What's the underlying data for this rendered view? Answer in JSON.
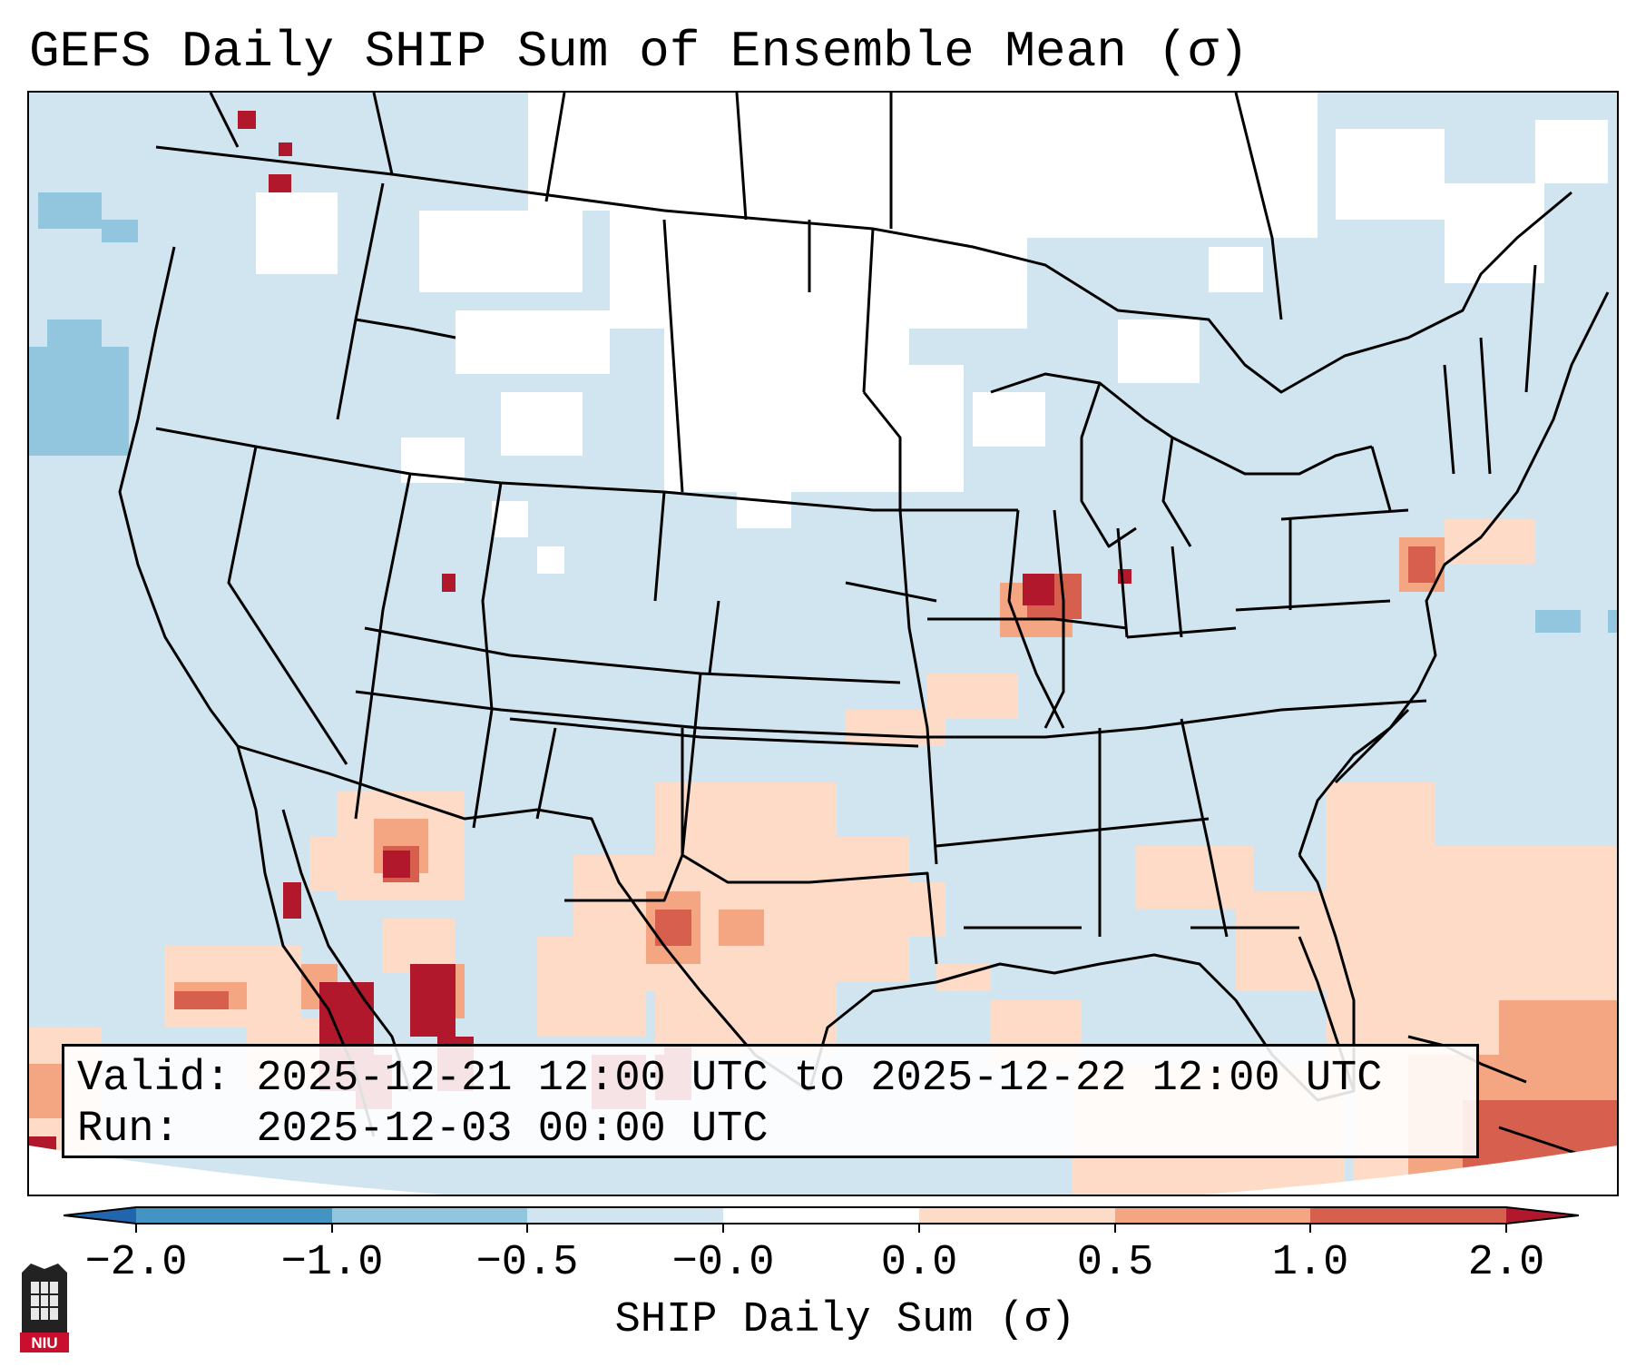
{
  "title": "GEFS Daily SHIP Sum of Ensemble Mean (σ)",
  "info": {
    "valid_label": "Valid:",
    "valid_value": "2025-12-21 12:00 UTC to 2025-12-22 12:00 UTC",
    "run_label": "Run:",
    "run_value": "2025-12-03 00:00 UTC"
  },
  "colorbar": {
    "label": "SHIP Daily Sum (σ)",
    "ticks": [
      "−2.0",
      "−1.0",
      "−0.5",
      "−0.0",
      "0.0",
      "0.5",
      "1.0",
      "2.0"
    ],
    "bins": [
      {
        "range": "< -2.0",
        "color": "#2166ac"
      },
      {
        "range": "-2.0 to -1.0",
        "color": "#4393c3"
      },
      {
        "range": "-1.0 to -0.5",
        "color": "#92c5de"
      },
      {
        "range": "-0.5 to -0.0",
        "color": "#d1e5f0"
      },
      {
        "range": "-0.0 to 0.0",
        "color": "#ffffff"
      },
      {
        "range": "0.0 to 0.5",
        "color": "#fddbc7"
      },
      {
        "range": "0.5 to 1.0",
        "color": "#f4a582"
      },
      {
        "range": "1.0 to 2.0",
        "color": "#d6604d"
      },
      {
        "range": "> 2.0",
        "color": "#b2182b"
      }
    ]
  },
  "colors": {
    "ocean_background": "#d1e5f0",
    "neutral": "#ffffff",
    "negative_mid": "#92c5de",
    "positive_low": "#fddbc7",
    "positive_mid": "#f4a582",
    "positive_high": "#d6604d",
    "positive_extreme": "#b2182b"
  },
  "logo_text": "NIU"
}
